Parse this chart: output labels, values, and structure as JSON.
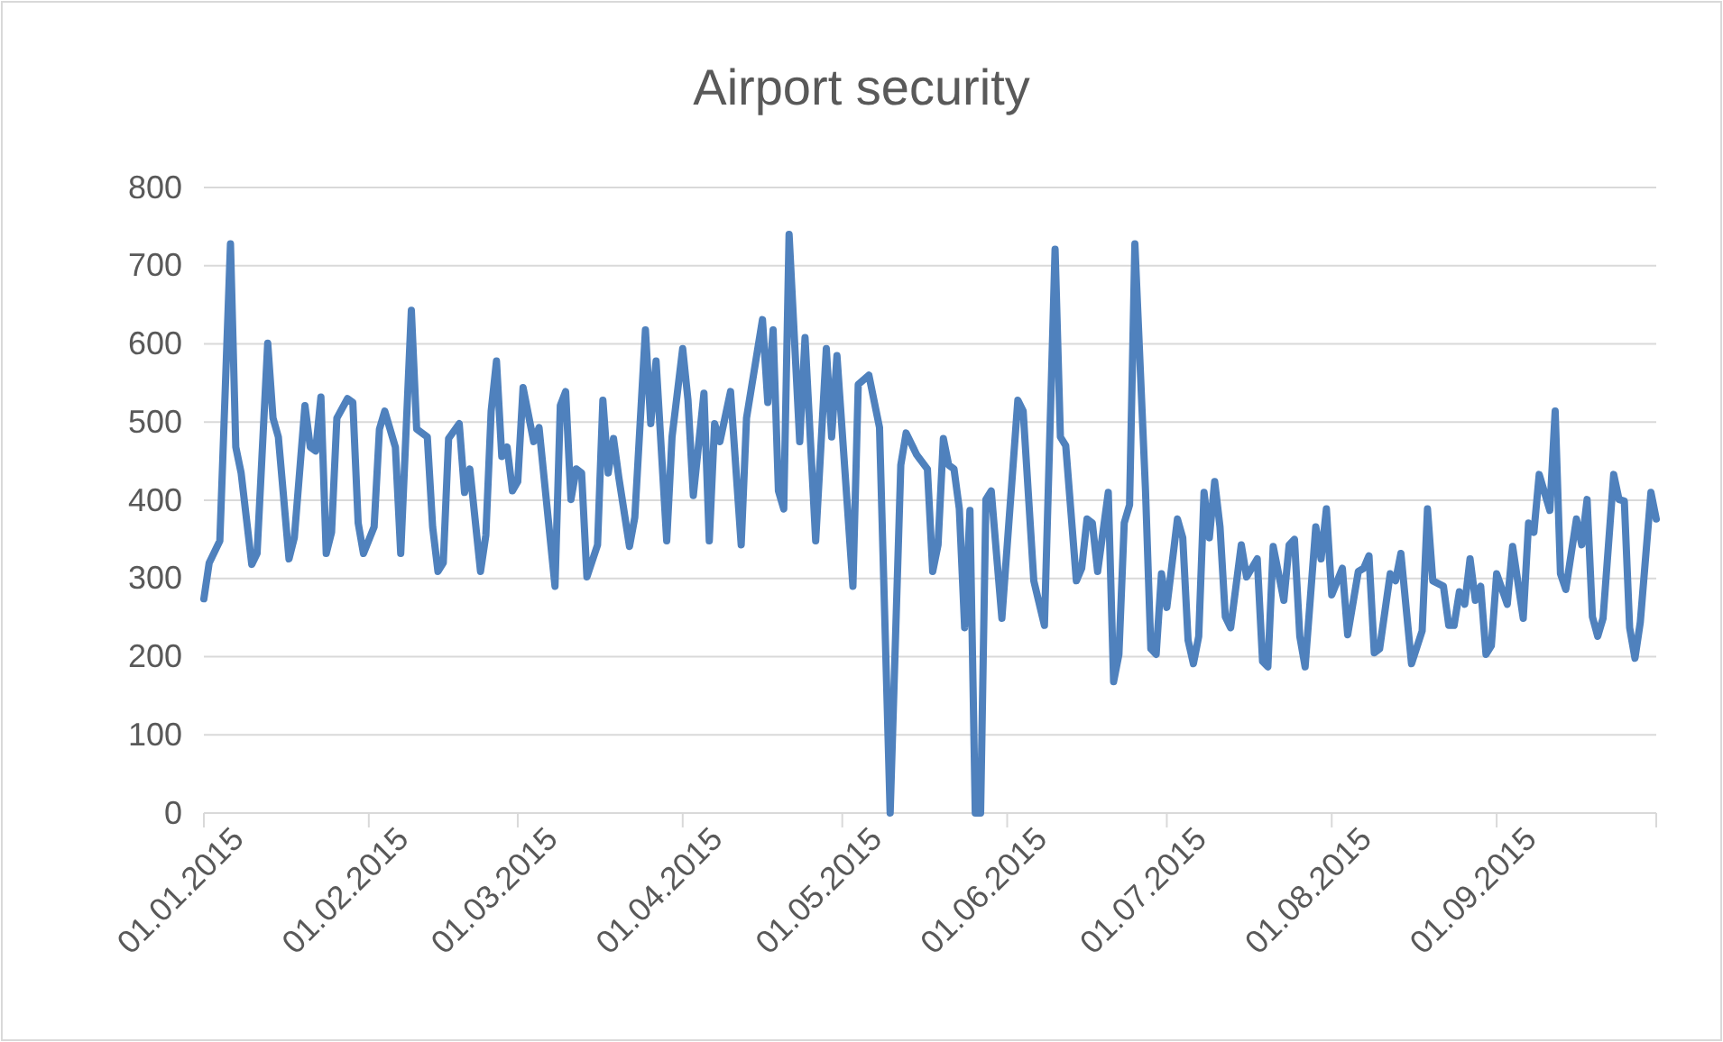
{
  "chart_data": {
    "type": "line",
    "title": "Airport security",
    "x": [
      "2015-01-01",
      "2015-01-02",
      "2015-01-04",
      "2015-01-06",
      "2015-01-07",
      "2015-01-08",
      "2015-01-10",
      "2015-01-11",
      "2015-01-13",
      "2015-01-14",
      "2015-01-15",
      "2015-01-17",
      "2015-01-18",
      "2015-01-20",
      "2015-01-21",
      "2015-01-22",
      "2015-01-23",
      "2015-01-24",
      "2015-01-25",
      "2015-01-26",
      "2015-01-28",
      "2015-01-29",
      "2015-01-30",
      "2015-01-31",
      "2015-02-02",
      "2015-02-03",
      "2015-02-04",
      "2015-02-06",
      "2015-02-07",
      "2015-02-09",
      "2015-02-10",
      "2015-02-12",
      "2015-02-13",
      "2015-02-14",
      "2015-02-15",
      "2015-02-16",
      "2015-02-18",
      "2015-02-19",
      "2015-02-20",
      "2015-02-22",
      "2015-02-23",
      "2015-02-24",
      "2015-02-25",
      "2015-02-26",
      "2015-02-27",
      "2015-02-28",
      "2015-03-01",
      "2015-03-02",
      "2015-03-04",
      "2015-03-05",
      "2015-03-08",
      "2015-03-09",
      "2015-03-10",
      "2015-03-11",
      "2015-03-12",
      "2015-03-13",
      "2015-03-14",
      "2015-03-16",
      "2015-03-17",
      "2015-03-18",
      "2015-03-19",
      "2015-03-20",
      "2015-03-22",
      "2015-03-23",
      "2015-03-25",
      "2015-03-26",
      "2015-03-27",
      "2015-03-29",
      "2015-03-30",
      "2015-04-01",
      "2015-04-02",
      "2015-04-03",
      "2015-04-05",
      "2015-04-06",
      "2015-04-07",
      "2015-04-08",
      "2015-04-10",
      "2015-04-12",
      "2015-04-13",
      "2015-04-16",
      "2015-04-17",
      "2015-04-18",
      "2015-04-19",
      "2015-04-20",
      "2015-04-21",
      "2015-04-23",
      "2015-04-24",
      "2015-04-26",
      "2015-04-28",
      "2015-04-29",
      "2015-04-30",
      "2015-05-03",
      "2015-05-04",
      "2015-05-06",
      "2015-05-08",
      "2015-05-10",
      "2015-05-12",
      "2015-05-13",
      "2015-05-15",
      "2015-05-17",
      "2015-05-18",
      "2015-05-19",
      "2015-05-20",
      "2015-05-21",
      "2015-05-22",
      "2015-05-23",
      "2015-05-24",
      "2015-05-25",
      "2015-05-26",
      "2015-05-27",
      "2015-05-28",
      "2015-05-29",
      "2015-05-31",
      "2015-06-03",
      "2015-06-04",
      "2015-06-06",
      "2015-06-08",
      "2015-06-10",
      "2015-06-11",
      "2015-06-12",
      "2015-06-14",
      "2015-06-15",
      "2015-06-16",
      "2015-06-17",
      "2015-06-18",
      "2015-06-20",
      "2015-06-21",
      "2015-06-22",
      "2015-06-23",
      "2015-06-24",
      "2015-06-25",
      "2015-06-27",
      "2015-06-28",
      "2015-06-29",
      "2015-06-30",
      "2015-07-01",
      "2015-07-03",
      "2015-07-04",
      "2015-07-05",
      "2015-07-06",
      "2015-07-07",
      "2015-07-08",
      "2015-07-09",
      "2015-07-10",
      "2015-07-11",
      "2015-07-12",
      "2015-07-13",
      "2015-07-15",
      "2015-07-16",
      "2015-07-18",
      "2015-07-19",
      "2015-07-20",
      "2015-07-21",
      "2015-07-23",
      "2015-07-24",
      "2015-07-25",
      "2015-07-26",
      "2015-07-27",
      "2015-07-29",
      "2015-07-30",
      "2015-07-31",
      "2015-08-01",
      "2015-08-03",
      "2015-08-04",
      "2015-08-06",
      "2015-08-07",
      "2015-08-08",
      "2015-08-09",
      "2015-08-10",
      "2015-08-12",
      "2015-08-13",
      "2015-08-14",
      "2015-08-16",
      "2015-08-18",
      "2015-08-19",
      "2015-08-20",
      "2015-08-22",
      "2015-08-23",
      "2015-08-24",
      "2015-08-25",
      "2015-08-26",
      "2015-08-27",
      "2015-08-28",
      "2015-08-29",
      "2015-08-30",
      "2015-08-31",
      "2015-09-01",
      "2015-09-03",
      "2015-09-04",
      "2015-09-06",
      "2015-09-07",
      "2015-09-08",
      "2015-09-09",
      "2015-09-11",
      "2015-09-12",
      "2015-09-13",
      "2015-09-14",
      "2015-09-16",
      "2015-09-17",
      "2015-09-18",
      "2015-09-19",
      "2015-09-20",
      "2015-09-21",
      "2015-09-23",
      "2015-09-24",
      "2015-09-25",
      "2015-09-26",
      "2015-09-27",
      "2015-09-28",
      "2015-09-30",
      "2015-10-01"
    ],
    "series": [
      {
        "color": "#4f81bd",
        "values": [
          274,
          320,
          348,
          728,
          468,
          435,
          318,
          332,
          601,
          505,
          481,
          325,
          352,
          521,
          468,
          463,
          532,
          332,
          359,
          505,
          530,
          525,
          371,
          332,
          366,
          491,
          514,
          468,
          332,
          643,
          491,
          481,
          366,
          309,
          320,
          479,
          498,
          410,
          440,
          309,
          355,
          514,
          578,
          456,
          468,
          412,
          424,
          544,
          475,
          493,
          290,
          521,
          539,
          401,
          440,
          435,
          302,
          343,
          528,
          435,
          479,
          429,
          341,
          378,
          618,
          498,
          578,
          348,
          481,
          594,
          528,
          406,
          537,
          348,
          498,
          475,
          539,
          343,
          505,
          631,
          525,
          618,
          412,
          389,
          740,
          475,
          608,
          348,
          594,
          481,
          585,
          290,
          548,
          560,
          493,
          0,
          445,
          486,
          458,
          440,
          309,
          343,
          479,
          445,
          440,
          389,
          237,
          387,
          0,
          0,
          401,
          412,
          249,
          528,
          514,
          297,
          240,
          721,
          481,
          470,
          297,
          313,
          376,
          371,
          309,
          410,
          168,
          203,
          371,
          394,
          728,
          412,
          210,
          203,
          306,
          263,
          376,
          352,
          221,
          191,
          226,
          410,
          352,
          424,
          366,
          251,
          237,
          343,
          302,
          325,
          194,
          187,
          341,
          272,
          343,
          350,
          226,
          187,
          366,
          325,
          389,
          279,
          313,
          228,
          309,
          313,
          329,
          205,
          210,
          306,
          297,
          332,
          191,
          233,
          389,
          297,
          290,
          240,
          240,
          283,
          267,
          325,
          272,
          290,
          203,
          214,
          306,
          267,
          341,
          249,
          371,
          359,
          433,
          387,
          514,
          306,
          286,
          376,
          343,
          401,
          251,
          226,
          249,
          433,
          401,
          399,
          237,
          198,
          244,
          410,
          376
        ]
      }
    ],
    "xlim": [
      "2015-01-01",
      "2015-10-01"
    ],
    "xticks": [
      {
        "value": "2015-01-01",
        "label": "01.01.2015"
      },
      {
        "value": "2015-02-01",
        "label": "01.02.2015"
      },
      {
        "value": "2015-03-01",
        "label": "01.03.2015"
      },
      {
        "value": "2015-04-01",
        "label": "01.04.2015"
      },
      {
        "value": "2015-05-01",
        "label": "01.05.2015"
      },
      {
        "value": "2015-06-01",
        "label": "01.06.2015"
      },
      {
        "value": "2015-07-01",
        "label": "01.07.2015"
      },
      {
        "value": "2015-08-01",
        "label": "01.08.2015"
      },
      {
        "value": "2015-09-01",
        "label": "01.09.2015"
      }
    ],
    "ylim": [
      0,
      800
    ],
    "yticks": [
      0,
      100,
      200,
      300,
      400,
      500,
      600,
      700,
      800
    ],
    "grid": "y",
    "line_style": "solid"
  }
}
